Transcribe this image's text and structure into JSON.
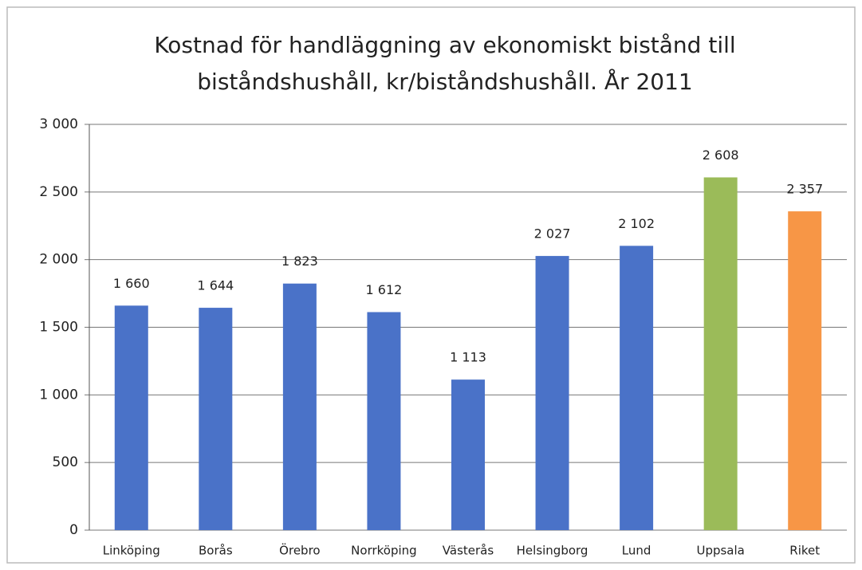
{
  "chart_data": {
    "type": "bar",
    "title": [
      "Kostnad för handläggning av ekonomiskt bistånd till",
      "biståndshushåll, kr/biståndshushåll. År 2011"
    ],
    "categories": [
      "Linköping",
      "Borås",
      "Örebro",
      "Norrköping",
      "Västerås",
      "Helsingborg",
      "Lund",
      "Uppsala",
      "Riket"
    ],
    "values": [
      1660,
      1644,
      1823,
      1612,
      1113,
      2027,
      2102,
      2608,
      2357
    ],
    "value_labels": [
      "1 660",
      "1 644",
      "1 823",
      "1 612",
      "1 113",
      "2 027",
      "2 102",
      "2 608",
      "2 357"
    ],
    "colors": [
      "#4a72c8",
      "#4a72c8",
      "#4a72c8",
      "#4a72c8",
      "#4a72c8",
      "#4a72c8",
      "#4a72c8",
      "#9bbb59",
      "#f79646"
    ],
    "ylim": [
      0,
      3000
    ],
    "yticks": [
      0,
      500,
      {
        "value": 1000,
        "label": "1 000"
      },
      {
        "value": 1500,
        "label": "1 500"
      },
      {
        "value": 2000,
        "label": "2 000"
      },
      {
        "value": 2500,
        "label": "2 500"
      },
      {
        "value": 3000,
        "label": "3 000"
      }
    ],
    "grid": true
  }
}
